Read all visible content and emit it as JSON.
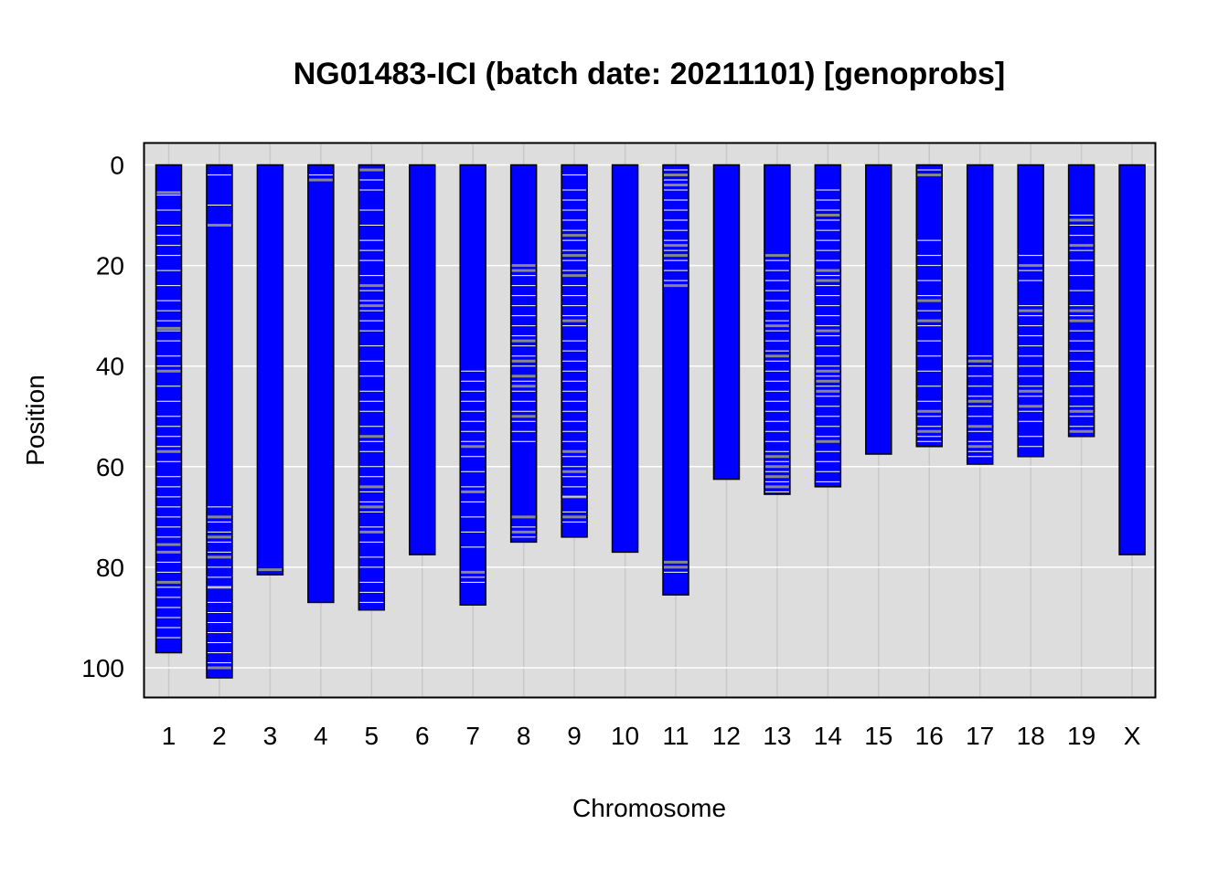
{
  "chart_data": {
    "type": "chromosome-ideogram",
    "title": "NG01483-ICI (batch date: 20211101) [genoprobs]",
    "xlabel": "Chromosome",
    "ylabel": "Position",
    "ylim": [
      0,
      105
    ],
    "y_reversed": true,
    "yticks": [
      0,
      20,
      40,
      60,
      80,
      100
    ],
    "grid": true,
    "colors": {
      "bar_fill": "#0000FF",
      "bar_border": "#000000",
      "panel_bg": "#DDDDDD",
      "grid_major": "#FFFFFF",
      "grid_minor": "#C8C8C8",
      "mark_white": "#FFFFFF",
      "mark_gray": "#888888"
    },
    "chromosomes": [
      {
        "name": "1",
        "length": 97.0,
        "marks_white": [
          6,
          9,
          12,
          14,
          16,
          18,
          21,
          24,
          27,
          29,
          31,
          33,
          35,
          38,
          40,
          44,
          47,
          50,
          52,
          54,
          56,
          59,
          62,
          64,
          66,
          68,
          70,
          72,
          74,
          79,
          81,
          84,
          86,
          88,
          90,
          92,
          94
        ],
        "marks_gray": [
          5.5,
          32.5,
          41,
          57,
          75.5,
          77,
          83
        ]
      },
      {
        "name": "2",
        "length": 102.0,
        "marks_white": [
          2,
          8,
          68,
          71,
          73,
          75,
          77,
          80,
          82,
          84,
          87,
          89,
          91,
          93,
          95,
          97,
          99
        ],
        "marks_gray": [
          12,
          70,
          74,
          78,
          84,
          100
        ]
      },
      {
        "name": "3",
        "length": 81.5,
        "marks_white": [],
        "marks_gray": [
          80.5
        ]
      },
      {
        "name": "4",
        "length": 87.0,
        "marks_white": [
          2
        ],
        "marks_gray": [
          3
        ]
      },
      {
        "name": "5",
        "length": 88.5,
        "marks_white": [
          3,
          5,
          9,
          12,
          15,
          17,
          19,
          22,
          25,
          27,
          29,
          31,
          33,
          36,
          39,
          42,
          45,
          47,
          49,
          52,
          55,
          57,
          60,
          62,
          65,
          67,
          69,
          72,
          75,
          78,
          80,
          83,
          85,
          87
        ],
        "marks_gray": [
          1,
          24,
          28,
          54,
          64,
          68,
          73
        ]
      },
      {
        "name": "6",
        "length": 77.5,
        "marks_white": [],
        "marks_gray": []
      },
      {
        "name": "7",
        "length": 87.5,
        "marks_white": [
          41,
          43,
          45,
          47,
          49,
          51,
          53,
          55,
          58,
          61,
          64,
          67,
          70,
          73,
          76,
          82,
          83
        ],
        "marks_gray": [
          56,
          65,
          81
        ]
      },
      {
        "name": "8",
        "length": 75.0,
        "marks_white": [
          22,
          24,
          26,
          28,
          30,
          32,
          34,
          36,
          38,
          40,
          43,
          45,
          47,
          49,
          51,
          53,
          55,
          72,
          74
        ],
        "marks_gray": [
          20,
          21,
          35,
          39,
          42,
          44,
          50,
          70,
          73
        ]
      },
      {
        "name": "9",
        "length": 74.0,
        "marks_white": [
          2,
          5,
          7,
          9,
          11,
          13,
          15,
          17,
          19,
          21,
          24,
          26,
          28,
          30,
          32,
          35,
          37,
          39,
          41,
          43,
          45,
          47,
          49,
          51,
          53,
          55,
          58,
          60,
          62,
          64,
          66,
          69,
          71
        ],
        "marks_gray": [
          14,
          18,
          22,
          31,
          57,
          61,
          66,
          70
        ]
      },
      {
        "name": "10",
        "length": 77.0,
        "marks_white": [],
        "marks_gray": []
      },
      {
        "name": "11",
        "length": 85.5,
        "marks_white": [
          1,
          3,
          5,
          7,
          9,
          11,
          13,
          15,
          17,
          19,
          21,
          23,
          81
        ],
        "marks_gray": [
          2,
          4,
          16,
          18,
          24,
          79,
          80
        ]
      },
      {
        "name": "12",
        "length": 62.5,
        "marks_white": [],
        "marks_gray": []
      },
      {
        "name": "13",
        "length": 65.5,
        "marks_white": [
          19,
          21,
          23,
          25,
          27,
          29,
          31,
          33,
          35,
          37,
          39,
          41,
          43,
          45,
          47,
          49,
          51,
          53,
          55,
          57,
          59,
          61,
          63,
          65
        ],
        "marks_gray": [
          18,
          32,
          38,
          58,
          60,
          62,
          64
        ]
      },
      {
        "name": "14",
        "length": 64.0,
        "marks_white": [
          5,
          7,
          9,
          11,
          13,
          15,
          17,
          19,
          22,
          24,
          26,
          28,
          30,
          32,
          34,
          36,
          38,
          40,
          42,
          44,
          46,
          48,
          50,
          52,
          54,
          57,
          59,
          61,
          63
        ],
        "marks_gray": [
          10,
          21,
          23,
          33,
          41,
          43,
          45,
          55
        ]
      },
      {
        "name": "15",
        "length": 57.5,
        "marks_white": [],
        "marks_gray": []
      },
      {
        "name": "16",
        "length": 56.0,
        "marks_white": [
          1,
          15,
          18,
          20,
          23,
          26,
          29,
          32,
          35,
          38,
          41,
          44,
          47,
          50,
          52,
          54,
          55
        ],
        "marks_gray": [
          2,
          27,
          31,
          49,
          53
        ]
      },
      {
        "name": "17",
        "length": 59.5,
        "marks_white": [
          38,
          40,
          42,
          44,
          46,
          48,
          50,
          53,
          55,
          57,
          58
        ],
        "marks_gray": [
          39,
          47,
          52,
          56
        ]
      },
      {
        "name": "18",
        "length": 58.0,
        "marks_white": [
          18,
          21,
          23,
          28,
          30,
          32,
          34,
          36,
          38,
          40,
          42,
          44,
          46,
          49,
          51,
          54,
          56
        ],
        "marks_gray": [
          20,
          29,
          45,
          48
        ]
      },
      {
        "name": "19",
        "length": 54.0,
        "marks_white": [
          10,
          12,
          14,
          17,
          19,
          22,
          25,
          28,
          30,
          33,
          35,
          37,
          39,
          41,
          44,
          46,
          48,
          50,
          52
        ],
        "marks_gray": [
          11,
          16,
          29,
          31,
          49,
          53
        ]
      },
      {
        "name": "X",
        "length": 77.5,
        "marks_white": [],
        "marks_gray": []
      }
    ]
  }
}
